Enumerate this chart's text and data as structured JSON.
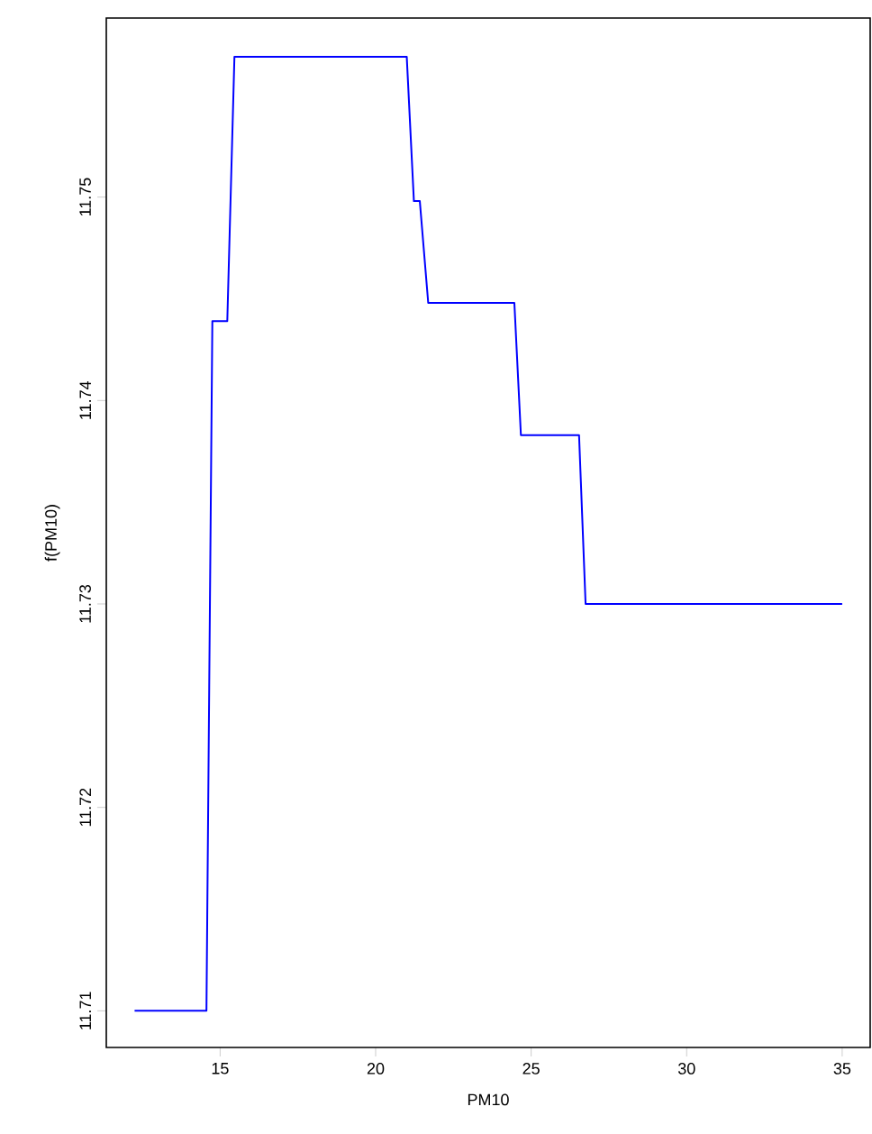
{
  "chart_data": {
    "type": "line",
    "xlabel": "PM10",
    "ylabel": "f(PM10)",
    "x": [
      12.25,
      14.56,
      14.75,
      14.79,
      15.23,
      15.46,
      21.0,
      21.23,
      21.42,
      21.69,
      24.46,
      24.67,
      26.54,
      26.75,
      35.0
    ],
    "series": [
      {
        "color": "#0000ff",
        "values": [
          11.71,
          11.71,
          11.7439,
          11.7439,
          11.7439,
          11.7569,
          11.7569,
          11.7498,
          11.7498,
          11.7448,
          11.7448,
          11.7383,
          11.7383,
          11.73,
          11.73
        ]
      }
    ],
    "xlim": [
      11.34,
      35.9
    ],
    "ylim": [
      11.7082,
      11.7588
    ],
    "xticks": [
      15,
      20,
      25,
      30,
      35
    ],
    "yticks": [
      11.71,
      11.72,
      11.73,
      11.74,
      11.75
    ]
  }
}
